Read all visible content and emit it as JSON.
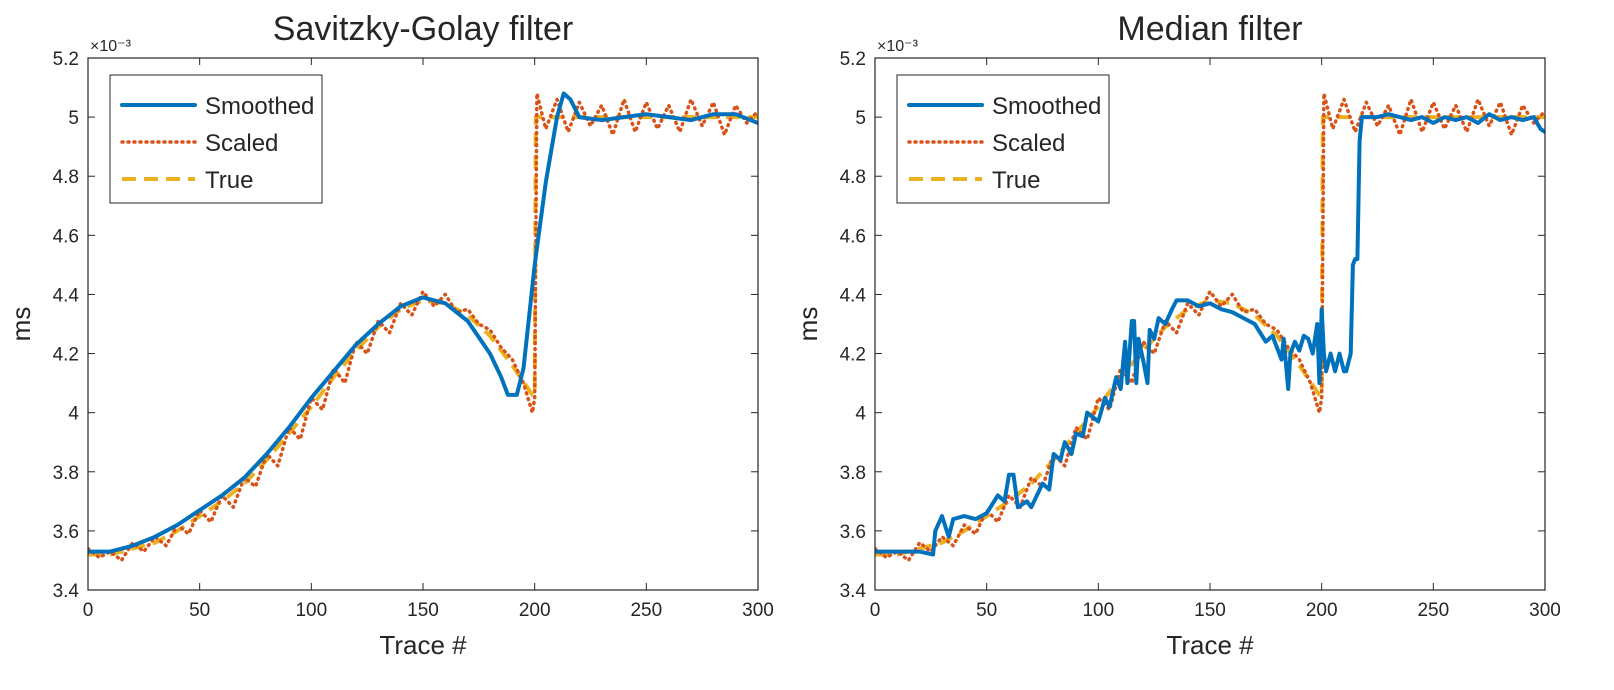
{
  "charts": [
    {
      "title": "Savitzky-Golay filter",
      "xlabel": "Trace #",
      "ylabel": "ms",
      "exponent": "×10⁻³",
      "legend": [
        "Smoothed",
        "Scaled",
        "True"
      ],
      "xticks": [
        "0",
        "50",
        "100",
        "150",
        "200",
        "250",
        "300"
      ],
      "yticks": [
        "3.4",
        "3.6",
        "3.8",
        "4",
        "4.2",
        "4.4",
        "4.6",
        "4.8",
        "5",
        "5.2"
      ]
    },
    {
      "title": "Median filter",
      "xlabel": "Trace #",
      "ylabel": "ms",
      "exponent": "×10⁻³",
      "legend": [
        "Smoothed",
        "Scaled",
        "True"
      ],
      "xticks": [
        "0",
        "50",
        "100",
        "150",
        "200",
        "250",
        "300"
      ],
      "yticks": [
        "3.4",
        "3.6",
        "3.8",
        "4",
        "4.2",
        "4.4",
        "4.6",
        "4.8",
        "5",
        "5.2"
      ]
    }
  ],
  "chart_data": [
    {
      "type": "line",
      "title": "Savitzky-Golay filter",
      "xlabel": "Trace #",
      "ylabel": "ms",
      "xlim": [
        0,
        300
      ],
      "ylim": [
        3.4,
        5.2
      ],
      "y_scale_note": "values in units of 10^-3",
      "colors": {
        "Smoothed": "#0072bd",
        "Scaled": "#d95319",
        "True": "#edb120"
      },
      "series": [
        {
          "name": "True",
          "style": "dashed",
          "x": [
            0,
            10,
            20,
            30,
            40,
            50,
            60,
            70,
            80,
            90,
            100,
            110,
            120,
            130,
            140,
            150,
            160,
            170,
            180,
            190,
            199,
            200,
            200.5,
            210,
            220,
            230,
            240,
            250,
            260,
            270,
            280,
            290,
            300
          ],
          "y": [
            3.52,
            3.52,
            3.54,
            3.56,
            3.6,
            3.65,
            3.7,
            3.76,
            3.84,
            3.93,
            4.02,
            4.12,
            4.21,
            4.29,
            4.35,
            4.38,
            4.37,
            4.33,
            4.26,
            4.16,
            4.06,
            4.06,
            5.0,
            5.0,
            5.0,
            5.0,
            5.0,
            5.0,
            5.0,
            5.0,
            5.0,
            5.0,
            5.0
          ]
        },
        {
          "name": "Scaled",
          "style": "dotted",
          "x": [
            0,
            5,
            10,
            15,
            20,
            25,
            30,
            35,
            40,
            45,
            50,
            55,
            60,
            65,
            70,
            75,
            80,
            85,
            90,
            95,
            100,
            105,
            110,
            115,
            120,
            125,
            130,
            135,
            140,
            145,
            150,
            155,
            160,
            165,
            170,
            175,
            180,
            185,
            190,
            195,
            199,
            200,
            201,
            205,
            210,
            215,
            220,
            225,
            230,
            235,
            240,
            245,
            250,
            255,
            260,
            265,
            270,
            275,
            280,
            285,
            290,
            295,
            300
          ],
          "y": [
            3.54,
            3.51,
            3.53,
            3.5,
            3.56,
            3.53,
            3.58,
            3.55,
            3.62,
            3.59,
            3.67,
            3.63,
            3.72,
            3.68,
            3.78,
            3.75,
            3.86,
            3.82,
            3.95,
            3.91,
            4.05,
            4.01,
            4.15,
            4.1,
            4.24,
            4.2,
            4.31,
            4.27,
            4.37,
            4.33,
            4.41,
            4.36,
            4.4,
            4.34,
            4.35,
            4.3,
            4.28,
            4.22,
            4.18,
            4.1,
            4.0,
            4.05,
            5.08,
            4.96,
            5.06,
            4.95,
            5.05,
            4.97,
            5.04,
            4.94,
            5.06,
            4.95,
            5.05,
            4.96,
            5.04,
            4.95,
            5.06,
            4.97,
            5.05,
            4.94,
            5.04,
            4.98,
            5.02
          ]
        },
        {
          "name": "Smoothed",
          "style": "solid",
          "x": [
            0,
            10,
            20,
            30,
            40,
            50,
            60,
            70,
            80,
            90,
            100,
            110,
            120,
            130,
            140,
            150,
            160,
            170,
            180,
            185,
            188,
            190,
            192,
            195,
            200,
            205,
            210,
            213,
            216,
            220,
            230,
            240,
            250,
            260,
            270,
            280,
            290,
            300
          ],
          "y": [
            3.53,
            3.53,
            3.55,
            3.58,
            3.62,
            3.67,
            3.72,
            3.78,
            3.86,
            3.95,
            4.05,
            4.14,
            4.23,
            4.3,
            4.36,
            4.39,
            4.37,
            4.31,
            4.2,
            4.12,
            4.06,
            4.06,
            4.06,
            4.15,
            4.5,
            4.78,
            5.0,
            5.08,
            5.06,
            5.0,
            4.99,
            5.0,
            5.01,
            5.0,
            4.99,
            5.01,
            5.01,
            4.98
          ]
        }
      ]
    },
    {
      "type": "line",
      "title": "Median filter",
      "xlabel": "Trace #",
      "ylabel": "ms",
      "xlim": [
        0,
        300
      ],
      "ylim": [
        3.4,
        5.2
      ],
      "y_scale_note": "values in units of 10^-3",
      "colors": {
        "Smoothed": "#0072bd",
        "Scaled": "#d95319",
        "True": "#edb120"
      },
      "series": [
        {
          "name": "True",
          "style": "dashed",
          "x": [
            0,
            10,
            20,
            30,
            40,
            50,
            60,
            70,
            80,
            90,
            100,
            110,
            120,
            130,
            140,
            150,
            160,
            170,
            180,
            190,
            199,
            200,
            200.5,
            210,
            220,
            230,
            240,
            250,
            260,
            270,
            280,
            290,
            300
          ],
          "y": [
            3.52,
            3.52,
            3.54,
            3.56,
            3.6,
            3.65,
            3.7,
            3.76,
            3.84,
            3.93,
            4.02,
            4.12,
            4.21,
            4.29,
            4.35,
            4.38,
            4.37,
            4.33,
            4.26,
            4.16,
            4.06,
            4.06,
            5.0,
            5.0,
            5.0,
            5.0,
            5.0,
            5.0,
            5.0,
            5.0,
            5.0,
            5.0,
            5.0
          ]
        },
        {
          "name": "Scaled",
          "style": "dotted",
          "x": [
            0,
            5,
            10,
            15,
            20,
            25,
            30,
            35,
            40,
            45,
            50,
            55,
            60,
            65,
            70,
            75,
            80,
            85,
            90,
            95,
            100,
            105,
            110,
            115,
            120,
            125,
            130,
            135,
            140,
            145,
            150,
            155,
            160,
            165,
            170,
            175,
            180,
            185,
            190,
            195,
            199,
            200,
            201,
            205,
            210,
            215,
            220,
            225,
            230,
            235,
            240,
            245,
            250,
            255,
            260,
            265,
            270,
            275,
            280,
            285,
            290,
            295,
            300
          ],
          "y": [
            3.54,
            3.51,
            3.53,
            3.5,
            3.56,
            3.53,
            3.58,
            3.55,
            3.62,
            3.59,
            3.67,
            3.63,
            3.72,
            3.68,
            3.78,
            3.75,
            3.86,
            3.82,
            3.95,
            3.91,
            4.05,
            4.01,
            4.15,
            4.1,
            4.24,
            4.2,
            4.31,
            4.27,
            4.37,
            4.33,
            4.41,
            4.36,
            4.4,
            4.34,
            4.35,
            4.3,
            4.28,
            4.22,
            4.18,
            4.1,
            4.0,
            4.05,
            5.08,
            4.96,
            5.06,
            4.95,
            5.05,
            4.97,
            5.04,
            4.94,
            5.06,
            4.95,
            5.05,
            4.96,
            5.04,
            4.95,
            5.06,
            4.97,
            5.05,
            4.94,
            5.04,
            4.98,
            5.02
          ]
        },
        {
          "name": "Smoothed",
          "style": "solid",
          "x": [
            0,
            10,
            20,
            26,
            27,
            30,
            33,
            35,
            40,
            45,
            50,
            55,
            58,
            60,
            62,
            64,
            68,
            70,
            75,
            78,
            80,
            83,
            85,
            88,
            90,
            93,
            95,
            100,
            103,
            105,
            108,
            110,
            112,
            113,
            115,
            116,
            117,
            118,
            120,
            122,
            123,
            125,
            127,
            130,
            133,
            135,
            140,
            145,
            150,
            155,
            160,
            165,
            170,
            175,
            178,
            180,
            182,
            183,
            185,
            186,
            188,
            190,
            192,
            194,
            196,
            198,
            199,
            200,
            201,
            202,
            204,
            206,
            208,
            210,
            211,
            213,
            214,
            215,
            216,
            217,
            218,
            220,
            222,
            225,
            230,
            235,
            240,
            245,
            250,
            255,
            260,
            265,
            270,
            275,
            280,
            285,
            290,
            295,
            298,
            300
          ],
          "y": [
            3.53,
            3.53,
            3.53,
            3.52,
            3.6,
            3.65,
            3.58,
            3.64,
            3.65,
            3.64,
            3.66,
            3.72,
            3.7,
            3.79,
            3.79,
            3.68,
            3.7,
            3.68,
            3.76,
            3.74,
            3.86,
            3.84,
            3.9,
            3.86,
            3.93,
            3.92,
            4.0,
            3.97,
            4.05,
            4.02,
            4.12,
            4.08,
            4.24,
            4.1,
            4.31,
            4.31,
            4.1,
            4.25,
            4.18,
            4.1,
            4.28,
            4.25,
            4.32,
            4.3,
            4.35,
            4.38,
            4.38,
            4.36,
            4.37,
            4.35,
            4.34,
            4.32,
            4.3,
            4.24,
            4.26,
            4.22,
            4.18,
            4.25,
            4.08,
            4.2,
            4.24,
            4.21,
            4.26,
            4.25,
            4.2,
            4.3,
            4.1,
            4.35,
            4.2,
            4.14,
            4.2,
            4.14,
            4.2,
            4.14,
            4.14,
            4.2,
            4.5,
            4.52,
            4.52,
            4.92,
            5.0,
            5.0,
            5.0,
            5.0,
            5.01,
            5.0,
            4.99,
            5.0,
            4.98,
            5.0,
            4.99,
            5.0,
            4.98,
            5.01,
            4.99,
            5.0,
            4.99,
            5.0,
            4.96,
            4.95
          ]
        }
      ]
    }
  ]
}
